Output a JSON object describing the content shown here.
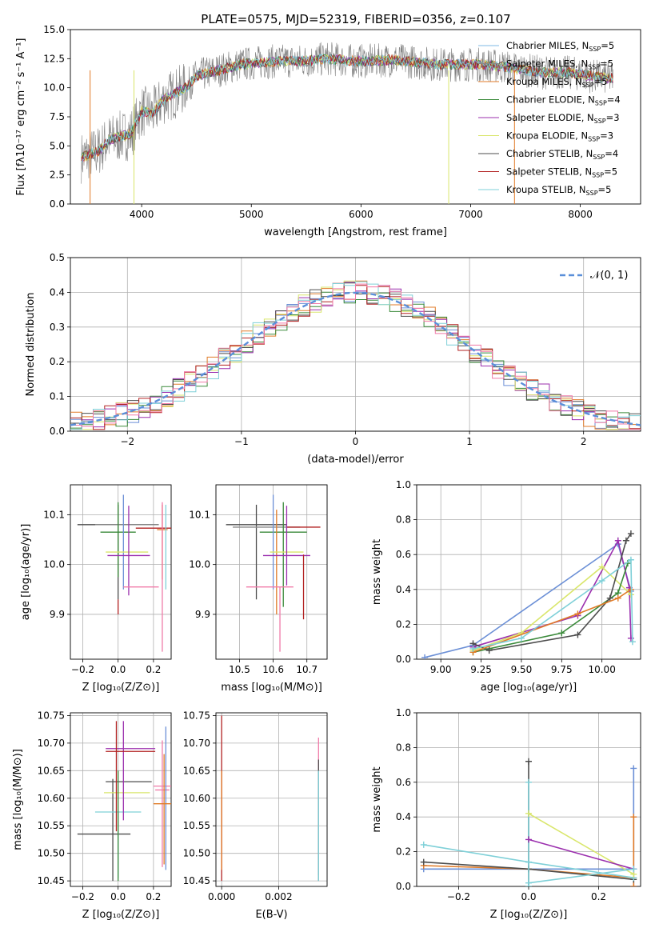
{
  "figure": {
    "title": "PLATE=0575, MJD=52319, FIBERID=0356, z=0.107"
  },
  "colors": {
    "Chabrier MILES": "#6b8fd6",
    "Salpeter MILES": "#e6e632",
    "Kroupa MILES": "#e07b28",
    "Chabrier ELODIE": "#3a8a3a",
    "Salpeter ELODIE": "#9b2fae",
    "Kroupa ELODIE": "#c8e05a",
    "Chabrier STELIB": "#4d4d4d",
    "Salpeter STELIB": "#b22222",
    "Kroupa STELIB": "#7fd0d8",
    "pink": "#f07aa8",
    "gray": "#888888",
    "normal": "#5b8fd9"
  },
  "chart_data": [
    {
      "id": "spectrum",
      "type": "line",
      "title": "PLATE=0575, MJD=52319, FIBERID=0356, z=0.107",
      "xlabel": "wavelength [Angstrom, rest frame]",
      "ylabel": "Flux [f_λ 10^-17 erg cm^-2 s^-1 A^-1]",
      "xlim": [
        3350,
        8550
      ],
      "ylim": [
        0,
        15
      ],
      "xticks": [
        4000,
        5000,
        6000,
        7000,
        8000
      ],
      "yticks": [
        0.0,
        2.5,
        5.0,
        7.5,
        10.0,
        12.5,
        15.0
      ],
      "grid": false,
      "legend_position": "top-right",
      "legend": [
        {
          "name": "Chabrier MILES",
          "nssp": "5",
          "color": "#7fb8e6"
        },
        {
          "name": "Salpeter MILES",
          "nssp": "5",
          "color": "#888888"
        },
        {
          "name": "Kroupa MILES",
          "nssp": "5",
          "color": "#e07b28"
        },
        {
          "name": "Chabrier ELODIE",
          "nssp": "4",
          "color": "#3a8a3a"
        },
        {
          "name": "Salpeter ELODIE",
          "nssp": "3",
          "color": "#9b2fae"
        },
        {
          "name": "Kroupa ELODIE",
          "nssp": "3",
          "color": "#d9e66b"
        },
        {
          "name": "Chabrier STELIB",
          "nssp": "4",
          "color": "#4d4d4d"
        },
        {
          "name": "Salpeter STELIB",
          "nssp": "5",
          "color": "#b22222"
        },
        {
          "name": "Kroupa STELIB",
          "nssp": "5",
          "color": "#7fd0d8"
        }
      ],
      "data_profile": {
        "x": [
          3450,
          3600,
          3700,
          3800,
          3900,
          4000,
          4100,
          4200,
          4300,
          4400,
          4500,
          4700,
          4900,
          5100,
          5300,
          5500,
          5700,
          5900,
          6100,
          6300,
          6500,
          6700,
          6900,
          7100,
          7300,
          7500,
          7700,
          7900,
          8100,
          8300
        ],
        "y": [
          4.0,
          4.5,
          5.5,
          5.8,
          6.0,
          8.0,
          7.8,
          9.0,
          9.5,
          10.0,
          11.0,
          11.5,
          12.0,
          12.2,
          12.3,
          12.3,
          12.5,
          12.3,
          12.3,
          12.4,
          12.2,
          12.0,
          12.0,
          12.0,
          11.8,
          11.5,
          11.3,
          11.3,
          11.0,
          10.8
        ]
      }
    },
    {
      "id": "residuals",
      "type": "histogram",
      "xlabel": "(data-model)/error",
      "ylabel": "Normed distribution",
      "xlim": [
        -2.5,
        2.5
      ],
      "ylim": [
        0,
        0.5
      ],
      "xticks": [
        -2,
        -1,
        0,
        1,
        2
      ],
      "yticks": [
        0.0,
        0.1,
        0.2,
        0.3,
        0.4,
        0.5
      ],
      "grid": true,
      "legend_position": "top-right",
      "legend_label": "𝒩(0, 1)",
      "bin_width": 0.1
    },
    {
      "id": "age-Z",
      "type": "errorbar",
      "xlabel": "Z [log10(Z/Z⊙)]",
      "ylabel": "age [log10(age/yr)]",
      "xlim": [
        -0.27,
        0.3
      ],
      "ylim": [
        9.81,
        10.16
      ],
      "xticks": [
        -0.2,
        0.0,
        0.2
      ],
      "yticks": [
        9.9,
        10.0,
        10.1
      ],
      "grid": true,
      "points": [
        {
          "x": 0.0,
          "xerr": 0.23,
          "y": 10.08,
          "yerr_lo": 0.15,
          "yerr_hi": 0.04,
          "color": "#4d4d4d"
        },
        {
          "x": 0.05,
          "xerr": 0.18,
          "y": 10.08,
          "yerr_lo": 0.0,
          "yerr_hi": 0.0,
          "color": "#888888"
        },
        {
          "x": 0.0,
          "xerr": 0.1,
          "y": 10.065,
          "yerr_lo": 0.09,
          "yerr_hi": 0.06,
          "color": "#3a8a3a"
        },
        {
          "x": 0.03,
          "xerr": 0.0,
          "y": 10.07,
          "yerr_lo": 0.12,
          "yerr_hi": 0.07,
          "color": "#6b8fd6"
        },
        {
          "x": 0.25,
          "xerr": 0.03,
          "y": 10.07,
          "yerr_lo": 0.1,
          "yerr_hi": 0.05,
          "color": "#e07b28"
        },
        {
          "x": 0.2,
          "xerr": 0.1,
          "y": 10.073,
          "yerr_lo": 0.0,
          "yerr_hi": 0.0,
          "color": "#b22222"
        },
        {
          "x": 0.05,
          "xerr": 0.12,
          "y": 10.025,
          "yerr_lo": 0.0,
          "yerr_hi": 0.0,
          "color": "#d9e66b"
        },
        {
          "x": 0.06,
          "xerr": 0.12,
          "y": 10.018,
          "yerr_lo": 0.08,
          "yerr_hi": 0.1,
          "color": "#9b2fae"
        },
        {
          "x": 0.27,
          "xerr": 0.0,
          "y": 10.0,
          "yerr_lo": 0.05,
          "yerr_hi": 0.12,
          "color": "#7fd0d8"
        },
        {
          "x": 0.25,
          "xerr": 0.0,
          "y": 9.955,
          "yerr_lo": 0.13,
          "yerr_hi": 0.17,
          "color": "#f07aa8"
        },
        {
          "x": 0.13,
          "xerr": 0.1,
          "y": 9.955,
          "yerr_lo": 0.0,
          "yerr_hi": 0.0,
          "color": "#f07aa8"
        },
        {
          "x": 0.0,
          "xerr": 0.0,
          "y": 9.93,
          "yerr_lo": 0.03,
          "yerr_hi": 0.0,
          "color": "#b22222"
        }
      ]
    },
    {
      "id": "age-mass",
      "type": "errorbar",
      "xlabel": "mass [log10(M/M⊙)]",
      "ylabel": "",
      "xlim": [
        10.43,
        10.76
      ],
      "ylim": [
        9.81,
        10.16
      ],
      "xticks": [
        10.5,
        10.6,
        10.7
      ],
      "yticks": [
        9.9,
        10.0,
        10.1
      ],
      "grid": true,
      "points": [
        {
          "x": 10.55,
          "xerr": 0.09,
          "y": 10.08,
          "yerr_lo": 0.15,
          "yerr_hi": 0.04,
          "color": "#4d4d4d"
        },
        {
          "x": 10.58,
          "xerr": 0.1,
          "y": 10.075,
          "yerr_lo": 0.0,
          "yerr_hi": 0.0,
          "color": "#888888"
        },
        {
          "x": 10.63,
          "xerr": 0.07,
          "y": 10.065,
          "yerr_lo": 0.15,
          "yerr_hi": 0.06,
          "color": "#3a8a3a"
        },
        {
          "x": 10.6,
          "xerr": 0.0,
          "y": 10.07,
          "yerr_lo": 0.12,
          "yerr_hi": 0.07,
          "color": "#6b8fd6"
        },
        {
          "x": 10.61,
          "xerr": 0.0,
          "y": 10.07,
          "yerr_lo": 0.17,
          "yerr_hi": 0.04,
          "color": "#e07b28"
        },
        {
          "x": 10.69,
          "xerr": 0.05,
          "y": 10.075,
          "yerr_lo": 0.0,
          "yerr_hi": 0.0,
          "color": "#b22222"
        },
        {
          "x": 10.64,
          "xerr": 0.05,
          "y": 10.025,
          "yerr_lo": 0.0,
          "yerr_hi": 0.0,
          "color": "#d9e66b"
        },
        {
          "x": 10.64,
          "xerr": 0.07,
          "y": 10.018,
          "yerr_lo": 0.06,
          "yerr_hi": 0.1,
          "color": "#9b2fae"
        },
        {
          "x": 10.62,
          "xerr": 0.0,
          "y": 9.955,
          "yerr_lo": 0.13,
          "yerr_hi": 0.0,
          "color": "#f07aa8"
        },
        {
          "x": 10.59,
          "xerr": 0.07,
          "y": 9.955,
          "yerr_lo": 0.0,
          "yerr_hi": 0.0,
          "color": "#f07aa8"
        },
        {
          "x": 10.69,
          "xerr": 0.0,
          "y": 9.94,
          "yerr_lo": 0.05,
          "yerr_hi": 0.08,
          "color": "#b22222"
        }
      ]
    },
    {
      "id": "weight-age",
      "type": "line",
      "xlabel": "age [log10(age/yr)]",
      "ylabel": "mass weight",
      "xlim": [
        8.85,
        10.24
      ],
      "ylim": [
        0,
        1.0
      ],
      "xticks": [
        9.0,
        9.25,
        9.5,
        9.75,
        10.0
      ],
      "yticks": [
        0.0,
        0.2,
        0.4,
        0.6,
        0.8,
        1.0
      ],
      "grid": true,
      "series": [
        {
          "x": [
            8.9,
            9.2,
            10.1,
            10.18
          ],
          "y": [
            0.01,
            0.08,
            0.66,
            0.39
          ],
          "color": "#6b8fd6"
        },
        {
          "x": [
            9.2,
            9.85,
            10.1,
            10.17,
            10.18
          ],
          "y": [
            0.07,
            0.25,
            0.68,
            0.41,
            0.12
          ],
          "color": "#9b2fae"
        },
        {
          "x": [
            9.2,
            9.5,
            10.0,
            10.18
          ],
          "y": [
            0.05,
            0.15,
            0.53,
            0.37
          ],
          "color": "#d9e66b"
        },
        {
          "x": [
            9.2,
            9.3,
            9.75,
            10.1,
            10.16
          ],
          "y": [
            0.04,
            0.06,
            0.15,
            0.38,
            0.55
          ],
          "color": "#3a8a3a"
        },
        {
          "x": [
            9.2,
            9.3,
            9.85,
            10.05,
            10.15,
            10.18
          ],
          "y": [
            0.09,
            0.05,
            0.14,
            0.35,
            0.68,
            0.72
          ],
          "color": "#4d4d4d"
        },
        {
          "x": [
            9.2,
            9.85,
            10.1,
            10.18
          ],
          "y": [
            0.04,
            0.26,
            0.35,
            0.4
          ],
          "color": "#e07b28"
        },
        {
          "x": [
            9.2,
            9.5,
            10.0,
            10.18,
            10.19
          ],
          "y": [
            0.06,
            0.12,
            0.45,
            0.57,
            0.1
          ],
          "color": "#7fd0d8"
        }
      ]
    },
    {
      "id": "mass-Z",
      "type": "errorbar",
      "xlabel": "Z [log10(Z/Z⊙)]",
      "ylabel": "mass [log10(M/M⊙)]",
      "xlim": [
        -0.27,
        0.3
      ],
      "ylim": [
        10.44,
        10.755
      ],
      "xticks": [
        -0.2,
        0.0,
        0.2
      ],
      "yticks": [
        10.45,
        10.5,
        10.55,
        10.6,
        10.65,
        10.7,
        10.75
      ],
      "grid": true,
      "points": [
        {
          "x": -0.08,
          "xerr": 0.15,
          "y": 10.535,
          "yerr_lo": 0.0,
          "yerr_hi": 0.0,
          "color": "#4d4d4d"
        },
        {
          "x": -0.03,
          "xerr": 0.0,
          "y": 10.535,
          "yerr_lo": 0.085,
          "yerr_hi": 0.1,
          "color": "#4d4d4d"
        },
        {
          "x": 0.0,
          "xerr": 0.13,
          "y": 10.575,
          "yerr_lo": 0.12,
          "yerr_hi": 0.0,
          "color": "#7fd0d8"
        },
        {
          "x": 0.06,
          "xerr": 0.13,
          "y": 10.63,
          "yerr_lo": 0.0,
          "yerr_hi": 0.0,
          "color": "#4d4d4d"
        },
        {
          "x": 0.05,
          "xerr": 0.13,
          "y": 10.61,
          "yerr_lo": 0.0,
          "yerr_hi": 0.0,
          "color": "#d9e66b"
        },
        {
          "x": 0.03,
          "xerr": 0.0,
          "y": 10.63,
          "yerr_lo": 0.07,
          "yerr_hi": 0.11,
          "color": "#9b2fae"
        },
        {
          "x": 0.07,
          "xerr": 0.14,
          "y": 10.685,
          "yerr_lo": 0.0,
          "yerr_hi": 0.0,
          "color": "#b22222"
        },
        {
          "x": 0.07,
          "xerr": 0.14,
          "y": 10.69,
          "yerr_lo": 0.0,
          "yerr_hi": 0.0,
          "color": "#9b2fae"
        },
        {
          "x": -0.01,
          "xerr": 0.0,
          "y": 10.64,
          "yerr_lo": 0.1,
          "yerr_hi": 0.1,
          "color": "#b22222"
        },
        {
          "x": 0.0,
          "xerr": 0.0,
          "y": 10.6,
          "yerr_lo": 0.15,
          "yerr_hi": 0.05,
          "color": "#3a8a3a"
        },
        {
          "x": 0.25,
          "xerr": 0.04,
          "y": 10.615,
          "yerr_lo": 0.14,
          "yerr_hi": 0.09,
          "color": "#f07aa8"
        },
        {
          "x": 0.25,
          "xerr": 0.05,
          "y": 10.622,
          "yerr_lo": 0.0,
          "yerr_hi": 0.0,
          "color": "#f07aa8"
        },
        {
          "x": 0.27,
          "xerr": 0.0,
          "y": 10.6,
          "yerr_lo": 0.13,
          "yerr_hi": 0.13,
          "color": "#6b8fd6"
        },
        {
          "x": 0.25,
          "xerr": 0.05,
          "y": 10.59,
          "yerr_lo": 0.0,
          "yerr_hi": 0.0,
          "color": "#e07b28"
        },
        {
          "x": 0.26,
          "xerr": 0.0,
          "y": 10.58,
          "yerr_lo": 0.1,
          "yerr_hi": 0.1,
          "color": "#e07b28"
        }
      ]
    },
    {
      "id": "mass-EBV",
      "type": "errorbar",
      "xlabel": "E(B-V)",
      "ylabel": "",
      "xlim": [
        -0.0002,
        0.0037
      ],
      "ylim": [
        10.44,
        10.755
      ],
      "xticks": [
        0.0,
        0.002
      ],
      "yticks": [
        10.45,
        10.5,
        10.55,
        10.6,
        10.65,
        10.7,
        10.75
      ],
      "grid": true,
      "points": [
        {
          "x": 0.0,
          "xerr": 0.0,
          "y": 10.6,
          "yerr_lo": 0.15,
          "yerr_hi": 0.15,
          "color": "#b22222"
        },
        {
          "x": 0.0,
          "xerr": 0.0,
          "y": 10.55,
          "yerr_lo": 0.08,
          "yerr_hi": 0.1,
          "color": "#e07b28"
        },
        {
          "x": 0.0034,
          "xerr": 0.0,
          "y": 10.58,
          "yerr_lo": 0.12,
          "yerr_hi": 0.13,
          "color": "#f07aa8"
        },
        {
          "x": 0.0034,
          "xerr": 0.0,
          "y": 10.56,
          "yerr_lo": 0.11,
          "yerr_hi": 0.11,
          "color": "#4d4d4d"
        },
        {
          "x": 0.0034,
          "xerr": 0.0,
          "y": 10.55,
          "yerr_lo": 0.1,
          "yerr_hi": 0.1,
          "color": "#7fd0d8"
        }
      ]
    },
    {
      "id": "weight-Z",
      "type": "line",
      "xlabel": "Z [log10(Z/Z⊙)]",
      "ylabel": "mass weight",
      "xlim": [
        -0.32,
        0.32
      ],
      "ylim": [
        0,
        1.0
      ],
      "xticks": [
        -0.2,
        0.0,
        0.2
      ],
      "yticks": [
        0.0,
        0.2,
        0.4,
        0.6,
        0.8,
        1.0
      ],
      "grid": true,
      "series": [
        {
          "x": [
            -0.3,
            0.0,
            0.3
          ],
          "y": [
            0.1,
            0.1,
            0.1
          ],
          "color": "#6b8fd6"
        },
        {
          "x": [
            0.3,
            0.3
          ],
          "y": [
            0.0,
            0.68
          ],
          "color": "#6b8fd6"
        },
        {
          "x": [
            -0.3,
            0.0,
            0.3
          ],
          "y": [
            0.12,
            0.1,
            0.05
          ],
          "color": "#e07b28"
        },
        {
          "x": [
            0.3,
            0.3
          ],
          "y": [
            0.0,
            0.4
          ],
          "color": "#e07b28"
        },
        {
          "x": [
            -0.3,
            0.0,
            0.3
          ],
          "y": [
            0.14,
            0.1,
            0.04
          ],
          "color": "#4d4d4d"
        },
        {
          "x": [
            0.0,
            0.0
          ],
          "y": [
            0.0,
            0.72
          ],
          "color": "#4d4d4d"
        },
        {
          "x": [
            -0.3,
            0.0,
            0.3
          ],
          "y": [
            0.24,
            0.14,
            0.05
          ],
          "color": "#7fd0d8"
        },
        {
          "x": [
            0.0,
            0.0
          ],
          "y": [
            0.0,
            0.6
          ],
          "color": "#7fd0d8"
        },
        {
          "x": [
            0.0,
            0.3
          ],
          "y": [
            0.42,
            0.07
          ],
          "color": "#d9e66b"
        },
        {
          "x": [
            0.0,
            0.3
          ],
          "y": [
            0.27,
            0.1
          ],
          "color": "#9b2fae"
        },
        {
          "x": [
            0.0,
            0.3
          ],
          "y": [
            0.02,
            0.1
          ],
          "color": "#7fd0d8"
        }
      ]
    }
  ]
}
